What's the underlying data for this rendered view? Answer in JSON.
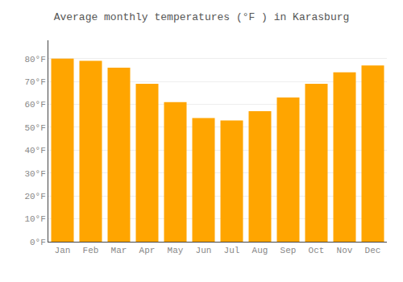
{
  "chart_data": {
    "type": "bar",
    "title": "Average monthly temperatures (°F ) in Karasburg",
    "categories": [
      "Jan",
      "Feb",
      "Mar",
      "Apr",
      "May",
      "Jun",
      "Jul",
      "Aug",
      "Sep",
      "Oct",
      "Nov",
      "Dec"
    ],
    "values": [
      80,
      79,
      76,
      69,
      61,
      54,
      53,
      57,
      63,
      69,
      74,
      77
    ],
    "color": "#FFA500",
    "ylim": [
      0,
      88
    ],
    "yticks": [
      {
        "value": 0,
        "label": "0°F"
      },
      {
        "value": 10,
        "label": "10°F"
      },
      {
        "value": 20,
        "label": "20°F"
      },
      {
        "value": 30,
        "label": "30°F"
      },
      {
        "value": 40,
        "label": "40°F"
      },
      {
        "value": 50,
        "label": "50°F"
      },
      {
        "value": 60,
        "label": "60°F"
      },
      {
        "value": 70,
        "label": "70°F"
      },
      {
        "value": 80,
        "label": "80°F"
      }
    ],
    "grid": true
  }
}
